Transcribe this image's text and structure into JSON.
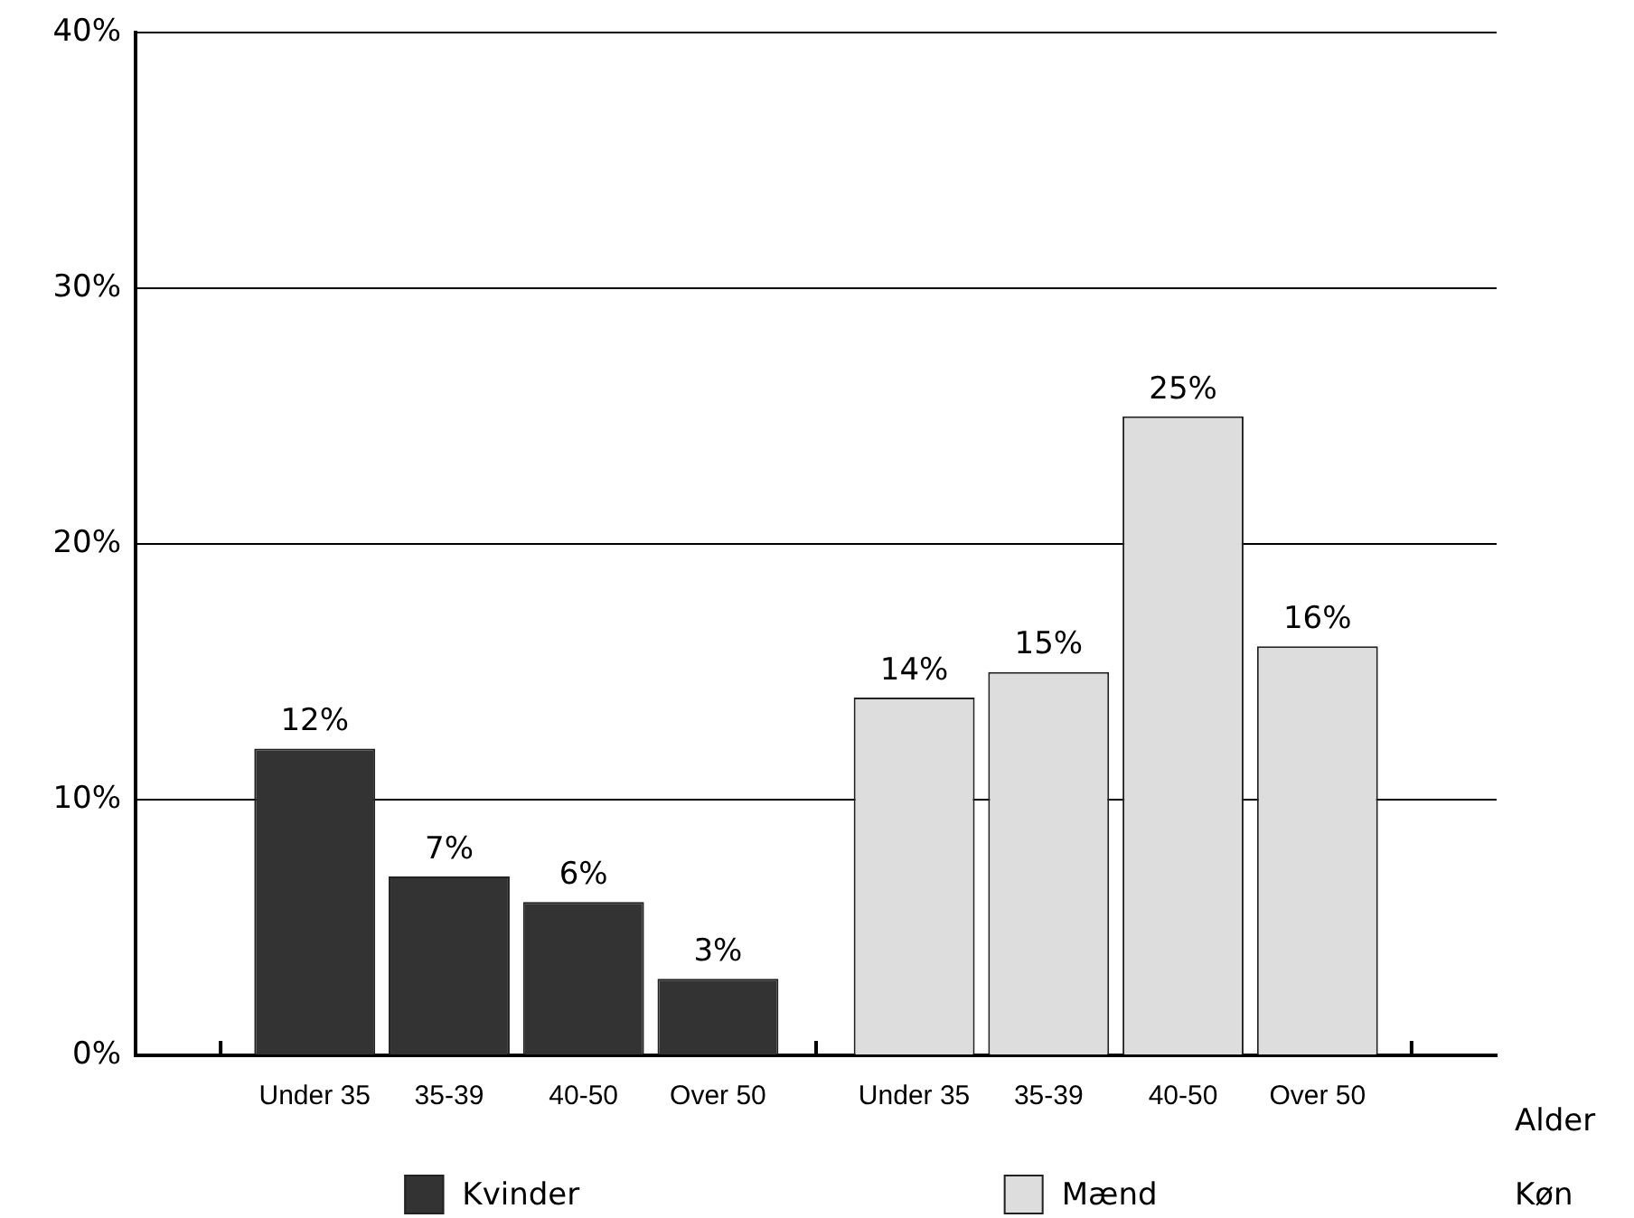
{
  "chart_data": {
    "type": "bar",
    "categories": [
      "Under 35",
      "35-39",
      "40-50",
      "Over 50",
      "Under 35",
      "35-39",
      "40-50",
      "Over 50"
    ],
    "series": [
      {
        "name": "Kvinder",
        "color": "#333333",
        "values": [
          12,
          7,
          6,
          3,
          null,
          null,
          null,
          null
        ],
        "value_labels": [
          "12%",
          "7%",
          "6%",
          "3%",
          null,
          null,
          null,
          null
        ]
      },
      {
        "name": "Mænd",
        "color": "#dddddd",
        "values": [
          null,
          null,
          null,
          null,
          14,
          15,
          25,
          16
        ],
        "value_labels": [
          null,
          null,
          null,
          null,
          "14%",
          "15%",
          "25%",
          "16%"
        ]
      }
    ],
    "ylim": [
      0,
      40
    ],
    "yticks": [
      {
        "value": 0,
        "label": "0%"
      },
      {
        "value": 10,
        "label": "10%"
      },
      {
        "value": 20,
        "label": "20%"
      },
      {
        "value": 30,
        "label": "30%"
      },
      {
        "value": 40,
        "label": "40%"
      }
    ],
    "xlabel": "Alder",
    "legend_title": "Køn",
    "legend": "bottom",
    "grid": "y"
  }
}
